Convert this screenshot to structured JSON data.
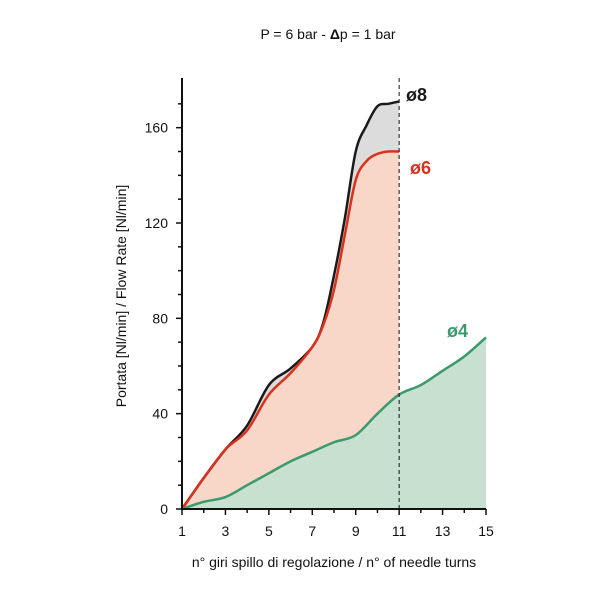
{
  "chart_data": {
    "type": "area",
    "title_parts": {
      "prefix": "P = 6 bar - ",
      "delta": "Δ",
      "suffix": "p = 1 bar"
    },
    "xlabel": "n° giri spillo di regolazione / n° of needle turns",
    "ylabel": "Portata [Nl/min] / Flow Rate [Nl/min]",
    "xlim": [
      1,
      15
    ],
    "ylim": [
      0,
      180
    ],
    "x_ticks": [
      1,
      3,
      5,
      7,
      9,
      11,
      13,
      15
    ],
    "x_tick_labels": [
      "1",
      "3",
      "5",
      "7",
      "9",
      "11",
      "13",
      "15"
    ],
    "y_ticks": [
      0,
      40,
      80,
      120,
      160
    ],
    "y_tick_labels": [
      "0",
      "40",
      "80",
      "120",
      "160"
    ],
    "reference_line_x": 11,
    "grid": false,
    "series": [
      {
        "name": "ø8",
        "line_color": "#1a1a1a",
        "fill_color": "#dcdcdc",
        "label_color": "#1a1a1a",
        "x": [
          1,
          2,
          3,
          4,
          5,
          6,
          7,
          7.5,
          8,
          8.5,
          9,
          9.5,
          10,
          10.5,
          11
        ],
        "y": [
          0,
          13,
          25,
          35,
          52,
          59,
          68,
          78,
          98,
          122,
          150,
          161,
          169,
          170,
          171
        ]
      },
      {
        "name": "ø6",
        "line_color": "#d8321c",
        "fill_color": "#f8d6c8",
        "label_color": "#d8321c",
        "x": [
          1,
          2,
          3,
          4,
          5,
          6,
          7,
          7.5,
          8,
          8.5,
          9,
          9.5,
          10,
          10.5,
          11
        ],
        "y": [
          0,
          13,
          25,
          33,
          48,
          57,
          68,
          77,
          92,
          115,
          138,
          146,
          149,
          150,
          150
        ]
      },
      {
        "name": "ø4",
        "line_color": "#3a9a6c",
        "fill_color": "#c8e0d0",
        "label_color": "#3a9a6c",
        "x": [
          1,
          2,
          3,
          4,
          5,
          6,
          7,
          8,
          9,
          10,
          11,
          12,
          13,
          14,
          15
        ],
        "y": [
          0,
          3,
          5,
          10,
          15,
          20,
          24,
          28,
          31,
          40,
          48,
          52,
          58,
          64,
          72
        ]
      }
    ]
  }
}
